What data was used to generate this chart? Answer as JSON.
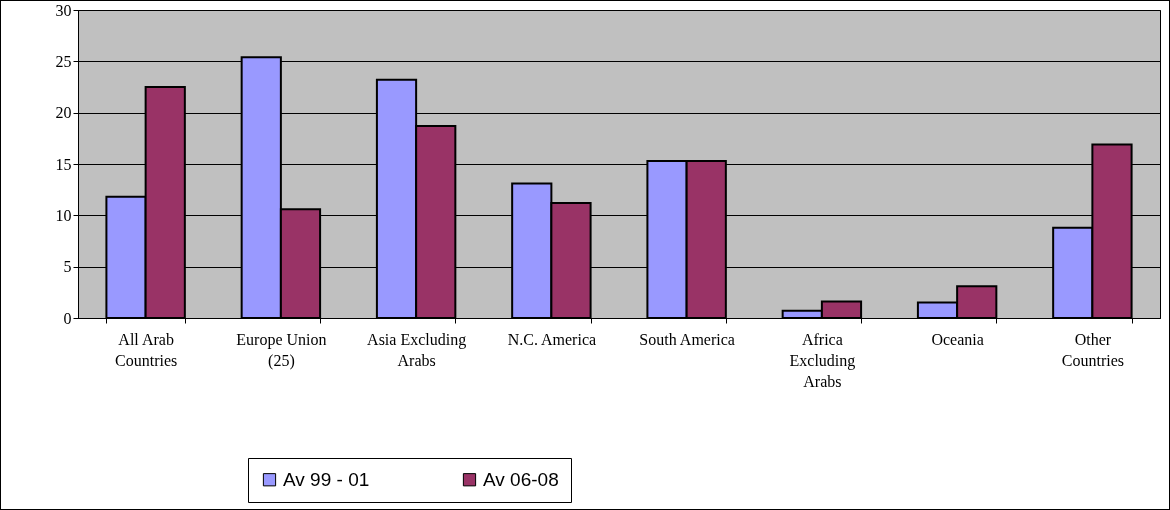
{
  "chart_data": {
    "type": "bar",
    "categories": [
      "All Arab Countries",
      "Europe Union (25)",
      "Asia Excluding Arabs",
      "N.C. America",
      "South America",
      "Africa Excluding Arabs",
      "Oceania",
      "Other Countries"
    ],
    "series": [
      {
        "name": "Av 99 - 01",
        "color": "#9999ff",
        "values": [
          11.8,
          25.4,
          23.2,
          13.1,
          15.3,
          0.7,
          1.5,
          8.8
        ]
      },
      {
        "name": "Av 06-08",
        "color": "#993366",
        "values": [
          22.5,
          10.6,
          18.7,
          11.2,
          15.3,
          1.6,
          3.1,
          16.9
        ]
      }
    ],
    "ylim": [
      0,
      30
    ],
    "yticks": [
      0,
      5,
      10,
      15,
      20,
      25,
      30
    ],
    "grid": "y",
    "legend": "bottom"
  }
}
